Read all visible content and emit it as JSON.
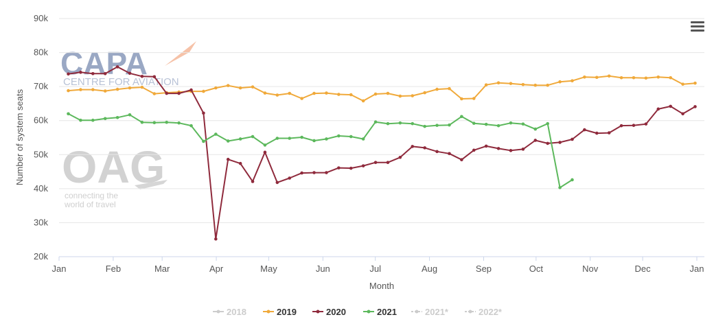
{
  "chart_data": {
    "type": "line",
    "title": "",
    "xlabel": "Month",
    "ylabel": "Number of system seats",
    "ylim": [
      20000,
      90000
    ],
    "y_ticks": [
      20000,
      30000,
      40000,
      50000,
      60000,
      70000,
      80000,
      90000
    ],
    "y_tick_labels": [
      "20k",
      "30k",
      "40k",
      "50k",
      "60k",
      "70k",
      "80k",
      "90k"
    ],
    "x_tick_labels": [
      "Jan",
      "Feb",
      "Mar",
      "Apr",
      "May",
      "Jun",
      "Jul",
      "Aug",
      "Sep",
      "Oct",
      "Nov",
      "Dec",
      "Jan"
    ],
    "grid": "horizontal",
    "legend_position": "bottom",
    "series": [
      {
        "name": "2018",
        "color": "#cccccc",
        "style": "solid",
        "visible": false,
        "values": []
      },
      {
        "name": "2019",
        "color": "#f0a93a",
        "style": "solid",
        "visible": true,
        "values": [
          68800,
          69100,
          69100,
          68700,
          69200,
          69600,
          69800,
          67900,
          68200,
          68400,
          68600,
          68600,
          69600,
          70300,
          69600,
          69900,
          68100,
          67500,
          68000,
          66500,
          68000,
          68100,
          67700,
          67600,
          65800,
          67800,
          68000,
          67200,
          67300,
          68200,
          69200,
          69400,
          66400,
          66500,
          70500,
          71100,
          70900,
          70600,
          70400,
          70400,
          71400,
          71700,
          72800,
          72700,
          73100,
          72600,
          72600,
          72500,
          72800,
          72600,
          70700,
          71000
        ]
      },
      {
        "name": "2020",
        "color": "#8f2a3c",
        "style": "solid",
        "visible": true,
        "values": [
          73700,
          74200,
          73800,
          73800,
          75800,
          73900,
          73000,
          72900,
          68000,
          68000,
          69000,
          62200,
          25200,
          48600,
          47400,
          42100,
          50700,
          41800,
          43100,
          44600,
          44700,
          44700,
          46100,
          46000,
          46700,
          47700,
          47700,
          49200,
          52400,
          52000,
          50900,
          50300,
          48500,
          51300,
          52500,
          51800,
          51200,
          51600,
          54200,
          53300,
          53600,
          54500,
          57300,
          56300,
          56400,
          58500,
          58600,
          59000,
          63400,
          64200,
          62000,
          64100
        ]
      },
      {
        "name": "2021",
        "color": "#5cb85c",
        "style": "solid",
        "visible": true,
        "values": [
          62000,
          60100,
          60100,
          60600,
          60900,
          61700,
          59500,
          59400,
          59500,
          59300,
          58500,
          53900,
          56000,
          54000,
          54600,
          55300,
          52800,
          54800,
          54800,
          55100,
          54100,
          54600,
          55500,
          55300,
          54600,
          59600,
          59100,
          59300,
          59100,
          58300,
          58600,
          58700,
          61200,
          59200,
          58900,
          58500,
          59300,
          59000,
          57500,
          59100,
          40300,
          42600
        ]
      },
      {
        "name": "2021*",
        "color": "#cccccc",
        "style": "dashed",
        "visible": false,
        "values": []
      },
      {
        "name": "2022*",
        "color": "#cccccc",
        "style": "dashed",
        "visible": false,
        "values": []
      }
    ]
  },
  "watermarks": {
    "capa_main": "CAPA",
    "capa_sub": "CENTRE FOR AVIATION",
    "oag_main": "OAG",
    "oag_sub_line1": "connecting the",
    "oag_sub_line2": "world of travel"
  },
  "toolbar": {
    "menu_icon": "hamburger-icon"
  }
}
